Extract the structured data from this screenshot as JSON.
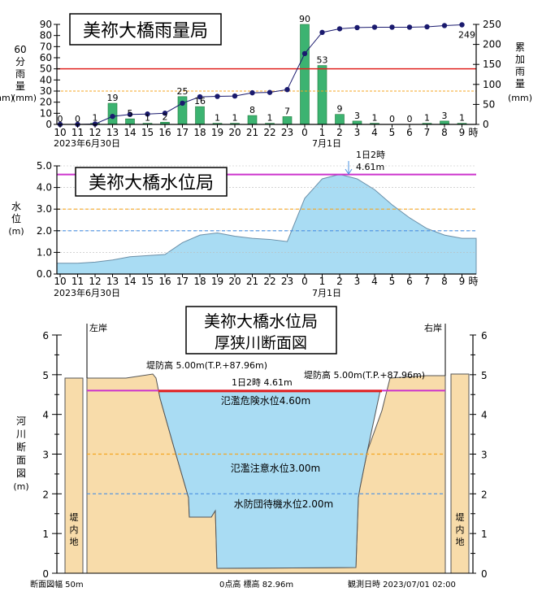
{
  "colors": {
    "bar": "#3cb371",
    "cum_line": "#1a1a6e",
    "red": "#e0201e",
    "orange": "#f5a623",
    "blue_dash": "#4a90e2",
    "magenta": "#cc33cc",
    "water": "#a9dcf3",
    "bank": "#f8dcaa"
  },
  "chart_data": [
    {
      "type": "bar",
      "title": "美祢大橋雨量局",
      "ylabel_left": [
        "60",
        "分",
        "雨",
        "量"
      ],
      "ylabel_left_unit": "(mm)",
      "ylabel_left_unit2": "(mm)",
      "ylabel_right": [
        "累",
        "加",
        "雨",
        "量"
      ],
      "ylabel_right_unit": "(mm)",
      "categories": [
        "10",
        "11",
        "12",
        "13",
        "14",
        "15",
        "16",
        "17",
        "18",
        "19",
        "20",
        "21",
        "22",
        "23",
        "0",
        "1",
        "2",
        "3",
        "4",
        "5",
        "6",
        "7",
        "8",
        "9"
      ],
      "x_suffix": "時",
      "date1": "2023年6月30日",
      "date2": "7月1日",
      "ylim_left": [
        0,
        90
      ],
      "yticks_left": [
        "0",
        "10",
        "20",
        "30",
        "40",
        "50",
        "60",
        "70",
        "80",
        "90"
      ],
      "ylim_right": [
        0,
        250
      ],
      "yticks_right": [
        "0",
        "50",
        "100",
        "150",
        "200",
        "250"
      ],
      "series": [
        {
          "values": [
            0,
            0,
            1,
            19,
            5,
            1,
            2,
            25,
            16,
            1,
            1,
            8,
            1,
            7,
            90,
            53,
            9,
            3,
            1,
            0,
            0,
            1,
            3,
            1
          ]
        },
        {
          "values": [
            0,
            0,
            1,
            20,
            25,
            26,
            28,
            53,
            69,
            70,
            71,
            79,
            80,
            87,
            177,
            230,
            239,
            242,
            243,
            243,
            243,
            244,
            247,
            249
          ]
        }
      ],
      "cum_label": "249",
      "ref_lines": [
        50,
        30
      ]
    },
    {
      "type": "area",
      "title": "美祢大橋水位局",
      "ylabel": [
        "水",
        "位"
      ],
      "ylabel_unit": "(m)",
      "categories": [
        "10",
        "11",
        "12",
        "13",
        "14",
        "15",
        "16",
        "17",
        "18",
        "19",
        "20",
        "21",
        "22",
        "23",
        "0",
        "1",
        "2",
        "3",
        "4",
        "5",
        "6",
        "7",
        "8",
        "9"
      ],
      "x_suffix": "時",
      "date1": "2023年6月30日",
      "date2": "7月1日",
      "ylim": [
        0,
        5
      ],
      "yticks": [
        "0.0",
        "1.0",
        "2.0",
        "3.0",
        "4.0",
        "5.0"
      ],
      "values": [
        0.5,
        0.5,
        0.55,
        0.65,
        0.8,
        0.85,
        0.9,
        1.45,
        1.8,
        1.9,
        1.75,
        1.65,
        1.6,
        1.5,
        3.5,
        4.4,
        4.61,
        4.4,
        3.9,
        3.2,
        2.6,
        2.1,
        1.8,
        1.65
      ],
      "ref_lines": [
        4.6,
        3.0,
        2.0
      ],
      "peak_label": "1日2時",
      "peak_value": "4.61m"
    },
    {
      "type": "area",
      "title_line1": "美祢大橋水位局",
      "title_line2": "厚狭川断面図",
      "ylabel": [
        "河",
        "川",
        "断",
        "面",
        "図"
      ],
      "ylabel_unit": "(m)",
      "ylim": [
        0,
        6
      ],
      "yticks": [
        "0",
        "1",
        "2",
        "3",
        "4",
        "5",
        "6"
      ],
      "left_bank": "左岸",
      "right_bank": "右岸",
      "levee_left": "堤防高 5.00m(T.P.+87.96m)",
      "levee_right": "堤防高 5.00m(T.P.+87.96m)",
      "current_label": "1日2時 4.61m",
      "current_level": 4.61,
      "danger_label": "氾濫危険水位4.60m",
      "danger_level": 4.6,
      "caution_label": "氾濫注意水位3.00m",
      "caution_level": 3.0,
      "standby_label": "水防団待機水位2.00m",
      "standby_level": 2.0,
      "inland_label": [
        "堤",
        "内",
        "地"
      ],
      "width_label": "断面図幅 50m",
      "zero_label": "0点高 標高 82.96m",
      "obs_label": "観測日時 2023/07/01 02:00"
    }
  ]
}
